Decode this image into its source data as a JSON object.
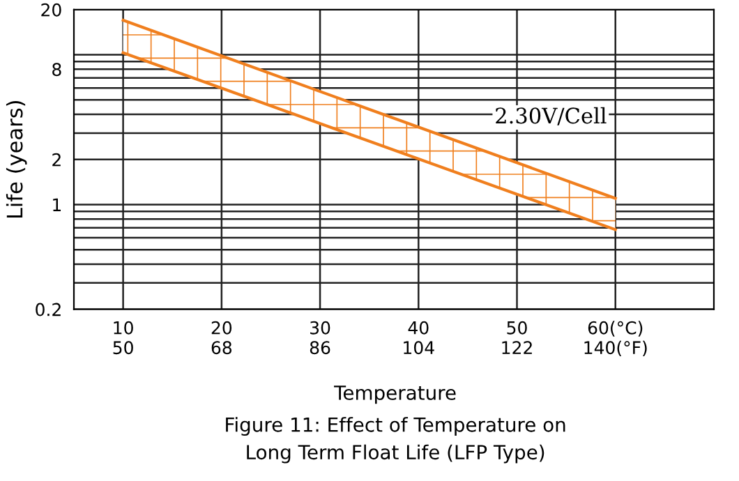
{
  "chart_data": {
    "type": "line",
    "title": "Figure 11: Effect of Temperature on\nLong Term Float Life (LFP Type)",
    "xlabel": "Temperature",
    "ylabel": "Life (years)",
    "x": [
      10,
      60
    ],
    "series": [
      {
        "color": "#f07f1e",
        "values": [
          17,
          1.1
        ],
        "lower": [
          10.3,
          0.68
        ],
        "upper": [
          17,
          1.1
        ]
      },
      {
        "color": "#f07f1e",
        "values": [
          10.3,
          0.68
        ]
      }
    ],
    "annotations": [
      "2.30V/Cell"
    ],
    "x2lim": [
      41,
      158
    ],
    "x2ticks": [
      50,
      68,
      86,
      104,
      122,
      {
        "value": 140,
        "label": "140(°F)"
      }
    ],
    "log": "y",
    "xlim": [
      5,
      70
    ],
    "ylim": [
      0.2,
      20
    ],
    "xticks": [
      10,
      20,
      30,
      40,
      50,
      {
        "value": 60,
        "label": "60(°C)"
      }
    ],
    "yticks": [
      0.2,
      {
        "value": 0.3,
        "label": null
      },
      {
        "value": 0.4,
        "label": null
      },
      {
        "value": 0.5,
        "label": null
      },
      {
        "value": 0.6,
        "label": null
      },
      {
        "value": 0.7,
        "label": null
      },
      {
        "value": 0.8,
        "label": null
      },
      {
        "value": 0.9,
        "label": null
      },
      1,
      2,
      {
        "value": 3,
        "label": null
      },
      {
        "value": 4,
        "label": null
      },
      {
        "value": 5,
        "label": null
      },
      {
        "value": 6,
        "label": null
      },
      {
        "value": 7,
        "label": null
      },
      8,
      {
        "value": 9,
        "label": null
      },
      {
        "value": 10,
        "label": null
      },
      20
    ],
    "grid": true,
    "marker": "none",
    "line_style": "solid",
    "legend": false
  }
}
